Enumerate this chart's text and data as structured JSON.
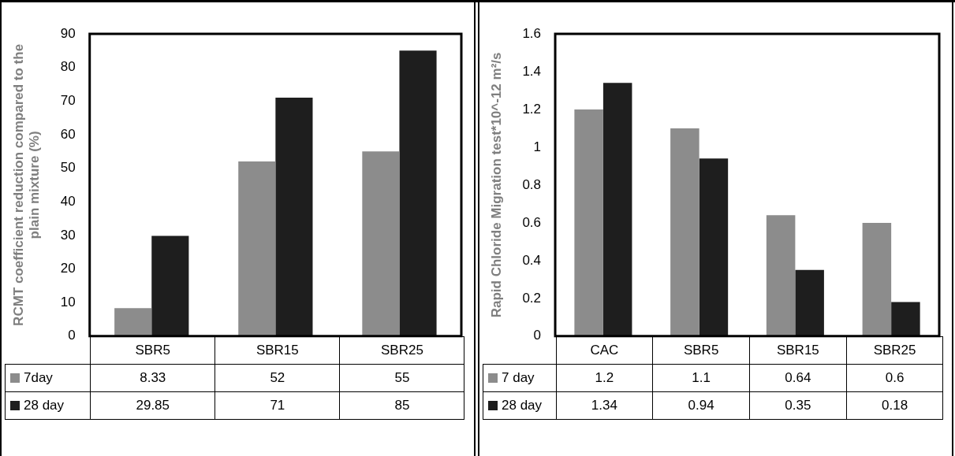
{
  "chart_data": [
    {
      "type": "bar",
      "ylabel": "RCMT coefficient reduction compared to the plain mixture (%)",
      "categories": [
        "SBR5",
        "SBR15",
        "SBR25"
      ],
      "series": [
        {
          "name": "7day",
          "color": "#8c8c8c",
          "values": [
            8.33,
            52,
            55
          ]
        },
        {
          "name": "28 day",
          "color": "#1e1e1e",
          "values": [
            29.85,
            71,
            85
          ]
        }
      ],
      "ylim": [
        0,
        90
      ],
      "yticks": [
        0,
        10,
        20,
        30,
        40,
        50,
        60,
        70,
        80,
        90
      ],
      "grid": false,
      "legend": "bottom",
      "data_labels": true
    },
    {
      "type": "bar",
      "ylabel": "Rapid Chloride Migration test*10^-12 m²/s",
      "categories": [
        "CAC",
        "SBR5",
        "SBR15",
        "SBR25"
      ],
      "series": [
        {
          "name": "7 day",
          "color": "#8c8c8c",
          "values": [
            1.2,
            1.1,
            0.64,
            0.6
          ]
        },
        {
          "name": "28 day",
          "color": "#1e1e1e",
          "values": [
            1.34,
            0.94,
            0.35,
            0.18
          ]
        }
      ],
      "ylim": [
        0,
        1.6
      ],
      "yticks": [
        0,
        0.2,
        0.4,
        0.6,
        0.8,
        1,
        1.2,
        1.4,
        1.6
      ],
      "grid": false,
      "legend": "bottom",
      "data_labels": true
    }
  ]
}
